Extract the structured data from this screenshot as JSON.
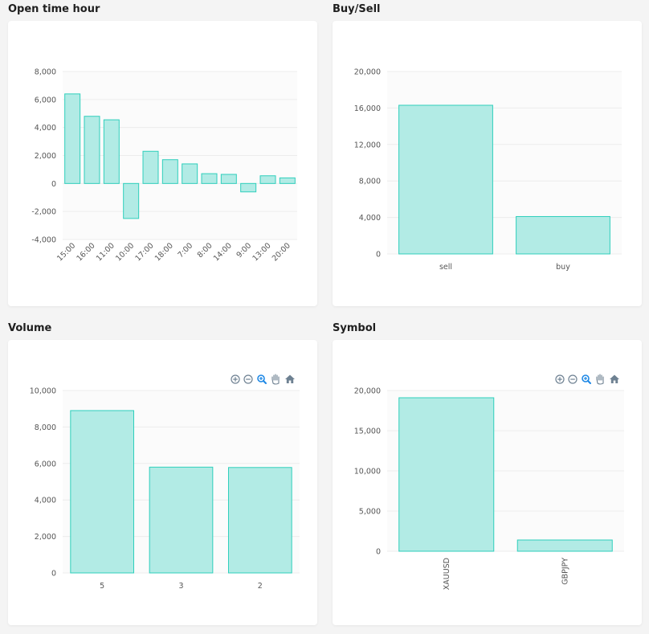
{
  "charts": [
    {
      "panel_title": "Open time hour",
      "chart_data": {
        "type": "bar",
        "categories": [
          "15:00",
          "16:00",
          "11:00",
          "10:00",
          "17:00",
          "18:00",
          "7:00",
          "8:00",
          "14:00",
          "9:00",
          "13:00",
          "20:00"
        ],
        "values": [
          6400,
          4800,
          4550,
          -2500,
          2300,
          1700,
          1400,
          700,
          650,
          -600,
          550,
          400
        ],
        "ylim": [
          -4000,
          8000
        ],
        "yticks": [
          -4000,
          -2000,
          0,
          2000,
          4000,
          6000,
          8000
        ],
        "ytick_labels": [
          "-4,000",
          "-2,000",
          "0",
          "2,000",
          "4,000",
          "6,000",
          "8,000"
        ],
        "x_label_rotation": "45deg",
        "grid": true,
        "toolbar": false
      }
    },
    {
      "panel_title": "Buy/Sell",
      "chart_data": {
        "type": "bar",
        "categories": [
          "sell",
          "buy"
        ],
        "values": [
          16300,
          4100
        ],
        "ylim": [
          0,
          20000
        ],
        "yticks": [
          0,
          4000,
          8000,
          12000,
          16000,
          20000
        ],
        "ytick_labels": [
          "0",
          "4,000",
          "8,000",
          "12,000",
          "16,000",
          "20,000"
        ],
        "x_label_rotation": "0deg",
        "grid": true,
        "toolbar": false
      }
    },
    {
      "panel_title": "Volume",
      "chart_data": {
        "type": "bar",
        "categories": [
          "5",
          "3",
          "2"
        ],
        "values": [
          8900,
          5800,
          5780
        ],
        "ylim": [
          0,
          10000
        ],
        "yticks": [
          0,
          2000,
          4000,
          6000,
          8000,
          10000
        ],
        "ytick_labels": [
          "0",
          "2,000",
          "4,000",
          "6,000",
          "8,000",
          "10,000"
        ],
        "x_label_rotation": "0deg",
        "grid": true,
        "toolbar": true
      }
    },
    {
      "panel_title": "Symbol",
      "chart_data": {
        "type": "bar",
        "categories": [
          "XAUUSD",
          "GBPJPY"
        ],
        "values": [
          19100,
          1400
        ],
        "ylim": [
          0,
          20000
        ],
        "yticks": [
          0,
          5000,
          10000,
          15000,
          20000
        ],
        "ytick_labels": [
          "0",
          "5,000",
          "10,000",
          "15,000",
          "20,000"
        ],
        "x_label_rotation": "90deg",
        "grid": true,
        "toolbar": true
      }
    }
  ],
  "colors": {
    "bar_fill": "#b2ebe5",
    "bar_stroke": "#2fcfbc",
    "toolbar_active": "#1e88e5",
    "toolbar_default": "#6e8192"
  },
  "toolbar_icons": [
    "zoom-in-icon",
    "zoom-out-icon",
    "zoom-select-icon",
    "pan-hand-icon",
    "home-reset-icon"
  ]
}
